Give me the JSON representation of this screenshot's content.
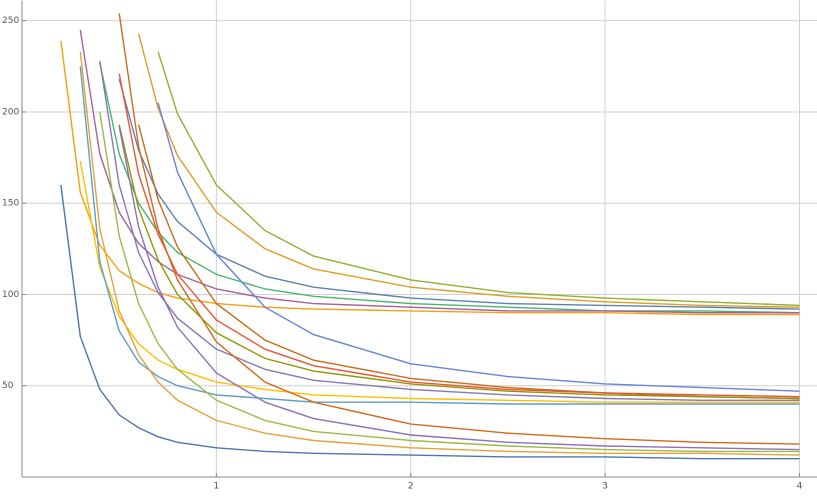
{
  "chart_data": {
    "type": "line",
    "x": [
      0.2,
      0.3,
      0.4,
      0.5,
      0.6,
      0.7,
      0.8,
      1,
      1.25,
      1.5,
      2,
      2.5,
      3,
      3.5,
      4
    ],
    "xlim": [
      0,
      4.09
    ],
    "ylim": [
      0,
      261
    ],
    "xticks": [
      1,
      2,
      3,
      4
    ],
    "yticks": [
      50,
      100,
      150,
      200,
      250
    ],
    "grid": true,
    "series": [
      {
        "color": "#8FB032",
        "values": [
          null,
          null,
          null,
          null,
          null,
          233,
          199,
          160,
          135,
          121,
          108,
          101,
          98,
          96,
          94
        ]
      },
      {
        "color": "#E19C24",
        "values": [
          null,
          null,
          null,
          null,
          243,
          202,
          176,
          145,
          125,
          114,
          104,
          99,
          96,
          94,
          93
        ]
      },
      {
        "color": "#5E81B5",
        "values": [
          null,
          null,
          null,
          218,
          179,
          155,
          140,
          122,
          110,
          104,
          98,
          95,
          94,
          93,
          92
        ]
      },
      {
        "color": "#47B66D",
        "values": [
          null,
          null,
          227,
          177,
          150,
          134,
          123,
          111,
          103,
          99,
          95,
          93,
          91,
          91,
          90
        ]
      },
      {
        "color": "#A5609D",
        "values": [
          null,
          245,
          177,
          145,
          128,
          118,
          111,
          103,
          98,
          95,
          93,
          91,
          91,
          90,
          90
        ]
      },
      {
        "color": "#F89F13",
        "values": [
          239,
          156,
          127,
          113,
          106,
          101,
          98,
          95,
          93,
          92,
          91,
          90,
          90,
          89,
          89
        ]
      },
      {
        "color": "#6685D9",
        "values": [
          null,
          null,
          null,
          null,
          null,
          205,
          167,
          122,
          93,
          78,
          62,
          55,
          51,
          49,
          47
        ]
      },
      {
        "color": "#C56E1A",
        "values": [
          null,
          null,
          null,
          null,
          193,
          152,
          126,
          95,
          75,
          64,
          54,
          49,
          46,
          44,
          43
        ]
      },
      {
        "color": "#E95536",
        "values": [
          null,
          null,
          null,
          221,
          166,
          133,
          111,
          86,
          70,
          61,
          52,
          48,
          46,
          45,
          44
        ]
      },
      {
        "color": "#929600",
        "values": [
          null,
          null,
          null,
          193,
          147,
          119,
          100,
          79,
          65,
          58,
          51,
          47,
          45,
          44,
          43
        ]
      },
      {
        "color": "#8778B3",
        "values": [
          null,
          null,
          228,
          160,
          123,
          101,
          87,
          70,
          59,
          53,
          48,
          45,
          43,
          42,
          42
        ]
      },
      {
        "color": "#FFBF00",
        "values": [
          null,
          173,
          115,
          88,
          73,
          64,
          59,
          52,
          48,
          45,
          43,
          42,
          41,
          41,
          41
        ]
      },
      {
        "color": "#5D9EC7",
        "values": [
          null,
          225,
          118,
          80,
          63,
          55,
          50,
          45,
          43,
          41,
          41,
          40,
          40,
          40,
          40
        ]
      },
      {
        "color": "#4F74B0",
        "values": [
          160,
          77,
          48,
          34,
          27,
          22,
          19,
          16,
          14,
          13,
          12,
          11,
          11,
          10,
          10
        ]
      },
      {
        "color": "#E8A13A",
        "values": [
          null,
          233,
          136,
          91,
          67,
          52,
          42,
          31,
          24,
          20,
          16,
          14,
          13,
          13,
          12
        ]
      },
      {
        "color": "#9CBA45",
        "values": [
          null,
          null,
          200,
          132,
          95,
          73,
          59,
          42,
          31,
          25,
          20,
          17,
          15,
          14,
          14
        ]
      },
      {
        "color": "#8F6FB8",
        "values": [
          null,
          null,
          null,
          192,
          137,
          104,
          82,
          57,
          41,
          32,
          23,
          19,
          17,
          16,
          15
        ]
      },
      {
        "color": "#D2691E",
        "values": [
          null,
          null,
          null,
          254,
          181,
          136,
          108,
          74,
          52,
          41,
          29,
          24,
          21,
          19,
          18
        ]
      }
    ]
  }
}
